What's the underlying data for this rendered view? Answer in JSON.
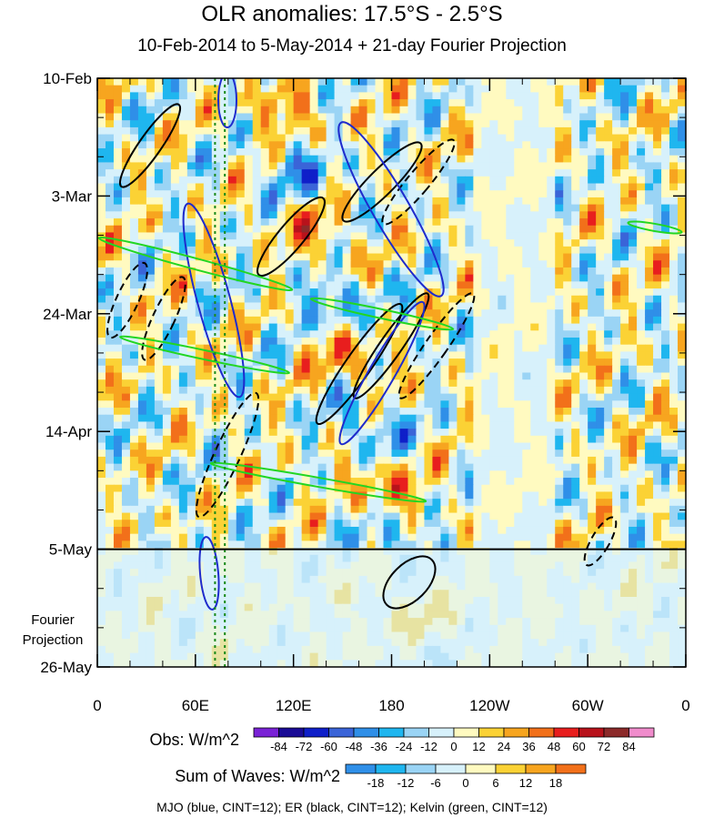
{
  "title": "OLR anomalies: 17.5°S - 2.5°S",
  "subtitle": "10-Feb-2014 to 5-May-2014 + 21-day Fourier Projection",
  "chart_data": {
    "type": "heatmap",
    "x_ticks": [
      "0",
      "60E",
      "120E",
      "180",
      "120W",
      "60W",
      "0"
    ],
    "y_ticks": [
      "10-Feb",
      "3-Mar",
      "24-Mar",
      "14-Apr",
      "5-May",
      "26-May"
    ],
    "xlim": [
      0,
      360
    ],
    "ylim_days": [
      0,
      105
    ],
    "projection_start": "5-May",
    "projection_label": [
      "Fourier",
      "Projection"
    ],
    "obs_colorbar": {
      "label": "Obs: W/m^2",
      "levels": [
        "-84",
        "-72",
        "-60",
        "-48",
        "-36",
        "-24",
        "-12",
        "0",
        "12",
        "24",
        "36",
        "48",
        "60",
        "72",
        "84"
      ],
      "colors": [
        "#7a22d6",
        "#1a0b96",
        "#0f1fc9",
        "#3a64d8",
        "#2f8fe8",
        "#1fb6ef",
        "#9ad4f5",
        "#d7f1fb",
        "#fffac0",
        "#fbd235",
        "#f7a51f",
        "#f2701a",
        "#e81e1e",
        "#b8121b",
        "#8c2a2a",
        "#f08ccc"
      ]
    },
    "waves_colorbar": {
      "label": "Sum of Waves: W/m^2",
      "levels": [
        "-18",
        "-12",
        "-6",
        "0",
        "6",
        "12",
        "18"
      ],
      "colors": [
        "#2f8fe8",
        "#1fb6ef",
        "#9ad4f5",
        "#d7f1fb",
        "#fffac0",
        "#fbd235",
        "#f7a51f",
        "#f2701a"
      ]
    },
    "footer": "MJO (blue, CINT=12); ER (black, CINT=12); Kelvin (green, CINT=12)"
  }
}
